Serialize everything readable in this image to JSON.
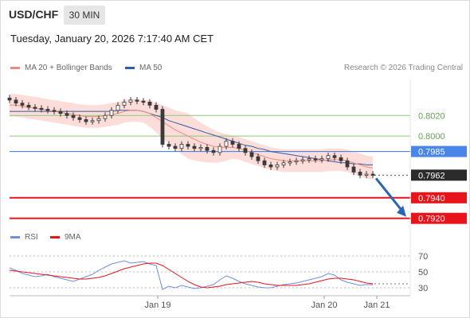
{
  "header": {
    "symbol": "USD/CHF",
    "timeframe": "30 MIN",
    "datetime": "Tuesday, January 20, 2026 7:17:40 AM CET",
    "credit": "Research © 2026 Trading Central"
  },
  "legend": {
    "bollinger": "MA 20 + Bollinger Bands",
    "ma50": "MA 50",
    "rsi": "RSI",
    "rsi_ma": "9MA"
  },
  "colors": {
    "bollinger": "#f08a80",
    "band_fill": "#fcd9d5",
    "ma50": "#2f5da8",
    "candle": "#3a3a3a",
    "resistance_green": "#8cc97a",
    "resistance_blue": "#4a86e8",
    "support_red": "#e8141c",
    "current_price": "#2b2b2b",
    "arrow": "#2a64b4",
    "rsi": "#6e8fe0",
    "rsi_ma": "#e8141c"
  },
  "chart_data": [
    {
      "type": "line",
      "title": "USD/CHF 30 MIN",
      "yrange": [
        0.7912,
        0.8055
      ],
      "x_tick_labels": [
        "Jan 19",
        "Jan 20",
        "Jan 21"
      ],
      "price_levels": [
        {
          "label": "0.8020",
          "value": 0.802,
          "kind": "resistance"
        },
        {
          "label": "0.8000",
          "value": 0.8,
          "kind": "resistance"
        },
        {
          "label": "0.7985",
          "value": 0.7985,
          "kind": "pivot"
        },
        {
          "label": "0.7962",
          "value": 0.7962,
          "kind": "current"
        },
        {
          "label": "0.7940",
          "value": 0.794,
          "kind": "support"
        },
        {
          "label": "0.7920",
          "value": 0.792,
          "kind": "support"
        }
      ],
      "series": [
        {
          "name": "Close",
          "values": [
            0.8035,
            0.8032,
            0.803,
            0.8028,
            0.8027,
            0.8026,
            0.8025,
            0.8024,
            0.8022,
            0.802,
            0.8018,
            0.8016,
            0.8014,
            0.8015,
            0.8017,
            0.802,
            0.8025,
            0.803,
            0.8033,
            0.8035,
            0.8034,
            0.8033,
            0.803,
            0.8026,
            0.7992,
            0.799,
            0.7988,
            0.7992,
            0.799,
            0.7988,
            0.7989,
            0.7986,
            0.7984,
            0.799,
            0.7995,
            0.7992,
            0.7988,
            0.7984,
            0.798,
            0.7976,
            0.7972,
            0.797,
            0.7972,
            0.7974,
            0.7975,
            0.7976,
            0.7977,
            0.7978,
            0.7977,
            0.7978,
            0.7981,
            0.7979,
            0.7976,
            0.797,
            0.7965,
            0.7962,
            0.7963,
            0.7962
          ]
        },
        {
          "name": "MA 20",
          "values": [
            0.803,
            0.803,
            0.8029,
            0.8028,
            0.8027,
            0.8026,
            0.8025,
            0.8024,
            0.8023,
            0.8022,
            0.8021,
            0.802,
            0.8019,
            0.8019,
            0.8019,
            0.802,
            0.8021,
            0.8022,
            0.8024,
            0.8025,
            0.8025,
            0.8024,
            0.8022,
            0.8018,
            0.8014,
            0.801,
            0.8006,
            0.8003,
            0.8,
            0.7997,
            0.7994,
            0.7992,
            0.799,
            0.7989,
            0.7989,
            0.7989,
            0.7988,
            0.7986,
            0.7984,
            0.7982,
            0.798,
            0.7978,
            0.7977,
            0.7976,
            0.7976,
            0.7976,
            0.7976,
            0.7976,
            0.7976,
            0.7976,
            0.7977,
            0.7977,
            0.7977,
            0.7976,
            0.7974,
            0.7972,
            0.797,
            0.7969
          ]
        },
        {
          "name": "MA 50",
          "values": [
            0.8024,
            0.8024,
            0.8024,
            0.8024,
            0.8024,
            0.8024,
            0.8024,
            0.8024,
            0.8024,
            0.8024,
            0.8024,
            0.8024,
            0.8024,
            0.8024,
            0.8024,
            0.8024,
            0.8024,
            0.8025,
            0.8025,
            0.8025,
            0.8025,
            0.8024,
            0.8022,
            0.802,
            0.8018,
            0.8015,
            0.8013,
            0.8011,
            0.8009,
            0.8007,
            0.8005,
            0.8003,
            0.8001,
            0.7999,
            0.7997,
            0.7995,
            0.7993,
            0.7991,
            0.799,
            0.7988,
            0.7987,
            0.7985,
            0.7984,
            0.7983,
            0.7982,
            0.7981,
            0.798,
            0.7979,
            0.7978,
            0.7977,
            0.7976,
            0.7975,
            0.7974,
            0.7974,
            0.7973,
            0.7973,
            0.7972,
            0.7972
          ]
        }
      ]
    },
    {
      "type": "line",
      "title": "RSI",
      "yrange": [
        20,
        80
      ],
      "y_ticks": [
        "70",
        "50",
        "30"
      ],
      "series": [
        {
          "name": "RSI",
          "values": [
            55,
            52,
            48,
            46,
            44,
            45,
            47,
            44,
            42,
            40,
            38,
            41,
            44,
            47,
            52,
            56,
            60,
            62,
            64,
            61,
            62,
            63,
            60,
            58,
            28,
            32,
            30,
            33,
            31,
            29,
            30,
            32,
            34,
            40,
            45,
            42,
            38,
            35,
            33,
            31,
            30,
            30,
            32,
            34,
            35,
            36,
            38,
            40,
            42,
            44,
            48,
            46,
            40,
            37,
            35,
            33,
            34,
            34
          ]
        },
        {
          "name": "9MA",
          "values": [
            52,
            51,
            50,
            49,
            48,
            47,
            46,
            45,
            44,
            43,
            42,
            41,
            41,
            42,
            43,
            45,
            48,
            51,
            54,
            56,
            58,
            60,
            61,
            61,
            58,
            53,
            48,
            43,
            38,
            34,
            31,
            30,
            31,
            32,
            34,
            35,
            36,
            37,
            38,
            37,
            35,
            34,
            33,
            33,
            33,
            33,
            34,
            35,
            37,
            39,
            41,
            42,
            42,
            41,
            40,
            38,
            36,
            35
          ]
        }
      ]
    }
  ]
}
